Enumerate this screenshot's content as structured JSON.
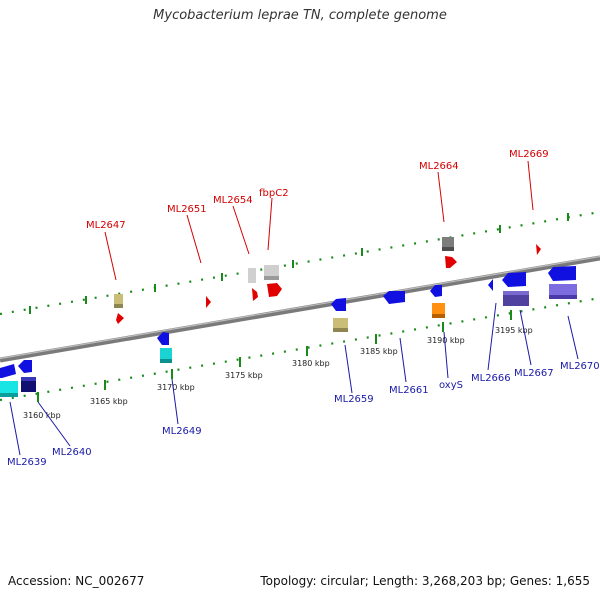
{
  "title": "Mycobacterium leprae TN, complete genome",
  "footer": {
    "accession": "Accession: NC_002677",
    "summary": "Topology: circular; Length: 3,268,203 bp; Genes: 1,655"
  },
  "tick_labels": [
    "3160 kbp",
    "3165 kbp",
    "3170 kbp",
    "3175 kbp",
    "3180 kbp",
    "3185 kbp",
    "3190 kbp",
    "3195 kbp"
  ],
  "top_labels": [
    "ML2647",
    "ML2651",
    "ML2654",
    "fbpC2",
    "ML2664",
    "ML2669"
  ],
  "bottom_labels": [
    "ML2639",
    "ML2640",
    "ML2649",
    "ML2659",
    "ML2661",
    "oxyS",
    "ML2666",
    "ML2667",
    "ML2670"
  ],
  "colors": {
    "red_strand": "#e00000",
    "blue_strand": "#1010e0",
    "backbone": "#888888",
    "ticks": "#1a8a1a"
  }
}
